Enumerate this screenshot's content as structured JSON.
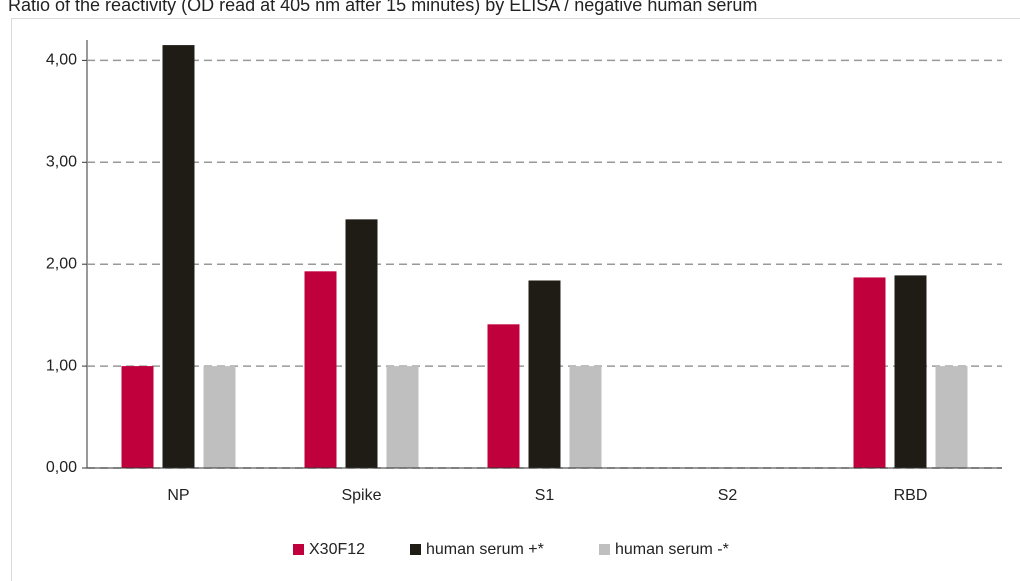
{
  "chart_data": {
    "type": "bar",
    "title": "Ratio of the reactivity (OD read at 405 nm after 15 minutes) by ELISA / negative human serum",
    "categories": [
      "NP",
      "Spike",
      "S1",
      "S2",
      "RBD"
    ],
    "series": [
      {
        "name": "X30F12",
        "color": "#c0003c",
        "values": [
          1.0,
          1.93,
          1.41,
          null,
          1.87
        ]
      },
      {
        "name": "human serum +*",
        "color": "#1e1c14",
        "values": [
          4.15,
          2.44,
          1.84,
          null,
          1.89
        ]
      },
      {
        "name": "human serum -*",
        "color": "#bfbfbf",
        "values": [
          1.0,
          1.0,
          1.0,
          null,
          1.0
        ]
      }
    ],
    "ylim": [
      0,
      4.2
    ],
    "yticks": [
      {
        "value": 0,
        "label": "0,00"
      },
      {
        "value": 1,
        "label": "1,00"
      },
      {
        "value": 2,
        "label": "2,00"
      },
      {
        "value": 3,
        "label": "3,00"
      },
      {
        "value": 4,
        "label": "4,00"
      }
    ],
    "grid": true,
    "legend": "bottom"
  }
}
